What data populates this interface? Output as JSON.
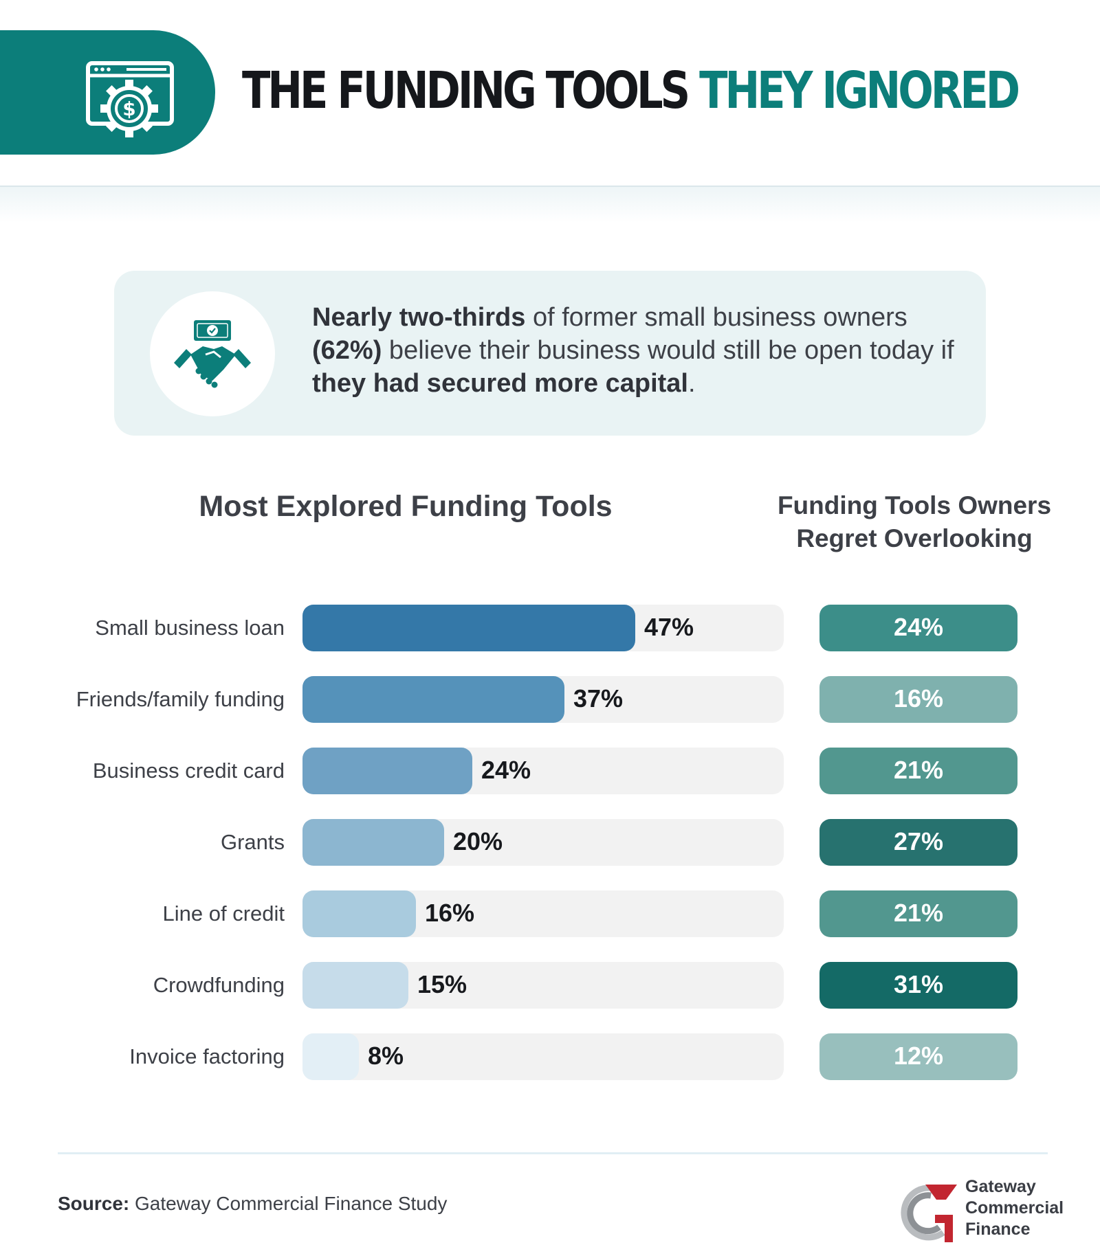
{
  "header": {
    "title_main": "THE FUNDING TOOLS",
    "title_accent": "THEY IGNORED",
    "icon": "browser-gear-dollar-icon",
    "accent_color": "#0c7e7a"
  },
  "callout": {
    "icon": "handshake-money-icon",
    "bold_1": "Nearly two-thirds",
    "text_1": " of former small business owners ",
    "bold_2": "(62%)",
    "text_2": " believe their business would still be open today if ",
    "bold_3": "they had secured more capital",
    "text_3": "."
  },
  "chart_data": [
    {
      "type": "bar",
      "orientation": "horizontal",
      "title": "Most Explored Funding Tools",
      "categories": [
        "Small business loan",
        "Friends/family funding",
        "Business credit card",
        "Grants",
        "Line of credit",
        "Crowdfunding",
        "Invoice factoring"
      ],
      "values": [
        47,
        37,
        24,
        20,
        16,
        15,
        8
      ],
      "value_labels": [
        "47%",
        "37%",
        "24%",
        "20%",
        "16%",
        "15%",
        "8%"
      ],
      "unit": "%",
      "xlim": [
        0,
        100
      ],
      "colors": [
        "#3478a8",
        "#5592ba",
        "#6fa1c4",
        "#8cb6d0",
        "#a9cbde",
        "#c6dcea",
        "#e3eff6"
      ]
    },
    {
      "type": "table",
      "title_line_1": "Funding Tools Owners",
      "title_line_2": "Regret Overlooking",
      "categories": [
        "Small business loan",
        "Friends/family funding",
        "Business credit card",
        "Grants",
        "Line of credit",
        "Crowdfunding",
        "Invoice factoring"
      ],
      "values": [
        24,
        16,
        21,
        27,
        21,
        31,
        12
      ],
      "value_labels": [
        "24%",
        "16%",
        "21%",
        "27%",
        "21%",
        "31%",
        "12%"
      ],
      "unit": "%",
      "colors": [
        "#3c8e89",
        "#7fb1ae",
        "#52978f",
        "#27726f",
        "#52978f",
        "#146a66",
        "#98bfbd"
      ]
    }
  ],
  "footer": {
    "source_label": "Source:",
    "source_text": " Gateway Commercial Finance Study",
    "logo_lines": [
      "Gateway",
      "Commercial",
      "Finance"
    ],
    "logo_colors": {
      "red": "#c22630",
      "gray": "#8d9195"
    }
  }
}
